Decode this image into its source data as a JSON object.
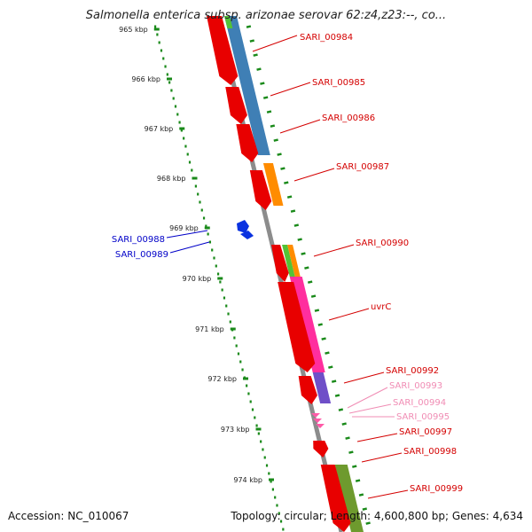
{
  "title": "Salmonella enterica subsp. arizonae serovar 62:z4,z23:--, co...",
  "footer": {
    "accession": "Accession: NC_010067",
    "summary": "Topology: circular; Length: 4,600,800 bp; Genes: 4,634"
  },
  "colors": {
    "backbone": "#8c8c8c",
    "ticks": "#1a8a1a",
    "forward_label": "#d40000",
    "reverse_label": "#0000c8",
    "faded_label": "#f08cb4"
  },
  "ticks": [
    {
      "label": "965 kbp"
    },
    {
      "label": "966 kbp"
    },
    {
      "label": "967 kbp"
    },
    {
      "label": "968 kbp"
    },
    {
      "label": "969 kbp"
    },
    {
      "label": "970 kbp"
    },
    {
      "label": "971 kbp"
    },
    {
      "label": "972 kbp"
    },
    {
      "label": "973 kbp"
    },
    {
      "label": "974 kbp"
    }
  ],
  "gene_labels": [
    {
      "text": "SARI_00984",
      "tone": "forward"
    },
    {
      "text": "SARI_00985",
      "tone": "forward"
    },
    {
      "text": "SARI_00986",
      "tone": "forward"
    },
    {
      "text": "SARI_00987",
      "tone": "forward"
    },
    {
      "text": "SARI_00988",
      "tone": "reverse"
    },
    {
      "text": "SARI_00989",
      "tone": "reverse"
    },
    {
      "text": "SARI_00990",
      "tone": "forward"
    },
    {
      "text": "uvrC",
      "tone": "forward"
    },
    {
      "text": "SARI_00992",
      "tone": "forward"
    },
    {
      "text": "SARI_00993",
      "tone": "faded"
    },
    {
      "text": "SARI_00994",
      "tone": "faded"
    },
    {
      "text": "SARI_00995",
      "tone": "faded"
    },
    {
      "text": "SARI_00997",
      "tone": "forward"
    },
    {
      "text": "SARI_00998",
      "tone": "forward"
    },
    {
      "text": "SARI_00999",
      "tone": "forward"
    }
  ]
}
